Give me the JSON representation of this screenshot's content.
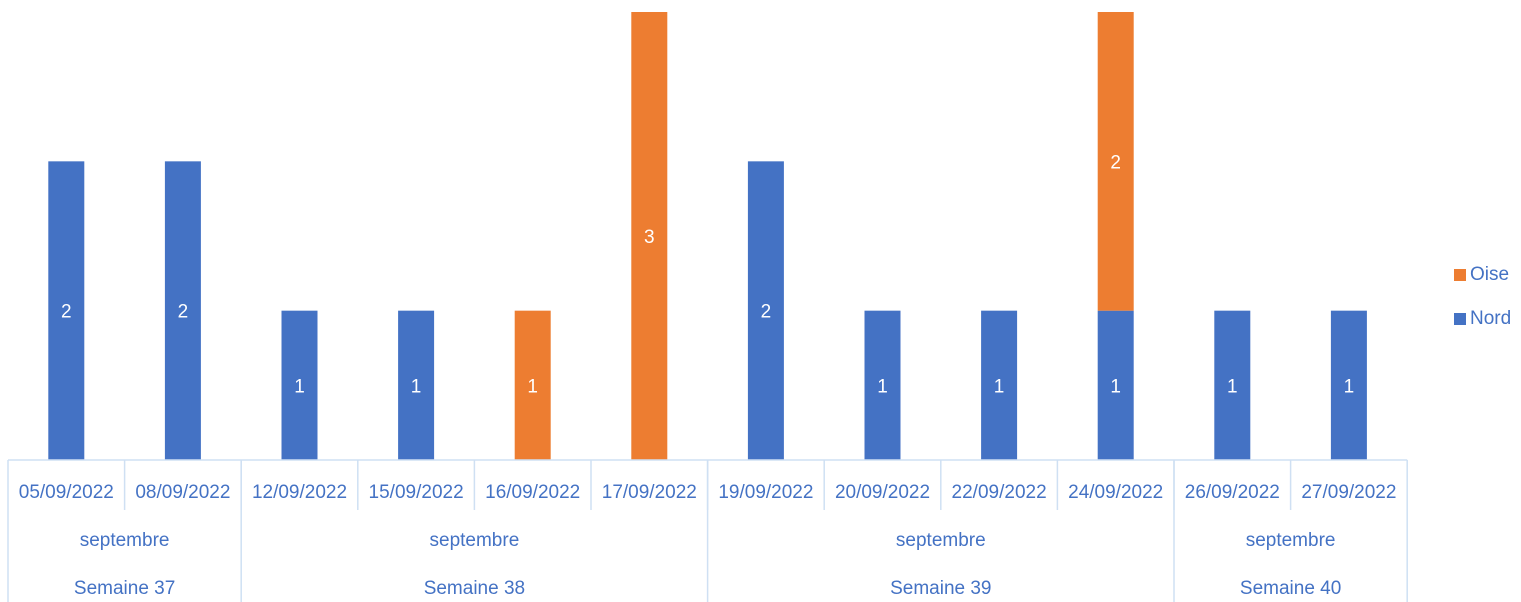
{
  "chart_data": {
    "type": "bar",
    "stacked": true,
    "categories": [
      "05/09/2022",
      "08/09/2022",
      "12/09/2022",
      "15/09/2022",
      "16/09/2022",
      "17/09/2022",
      "19/09/2022",
      "20/09/2022",
      "22/09/2022",
      "24/09/2022",
      "26/09/2022",
      "27/09/2022"
    ],
    "series": [
      {
        "name": "Nord",
        "color": "#4472c4",
        "values": [
          2,
          2,
          1,
          1,
          null,
          null,
          2,
          1,
          1,
          1,
          1,
          1
        ]
      },
      {
        "name": "Oise",
        "color": "#ed7d31",
        "values": [
          null,
          null,
          null,
          null,
          1,
          3,
          null,
          null,
          null,
          2,
          null,
          null
        ]
      }
    ],
    "month_labels": [
      "septembre",
      "septembre",
      "septembre",
      "septembre"
    ],
    "week_groups": [
      {
        "label": "Semaine 37",
        "count": 2,
        "month": "septembre"
      },
      {
        "label": "Semaine 38",
        "count": 4,
        "month": "septembre"
      },
      {
        "label": "Semaine 39",
        "count": 4,
        "month": "septembre"
      },
      {
        "label": "Semaine 40",
        "count": 2,
        "month": "septembre"
      }
    ],
    "data_labels": true,
    "legend": {
      "position": "right",
      "order": [
        "Oise",
        "Nord"
      ]
    },
    "axis_text_color": "#4472c4",
    "axis_line_color": "#cfe0f3",
    "grid": false
  }
}
